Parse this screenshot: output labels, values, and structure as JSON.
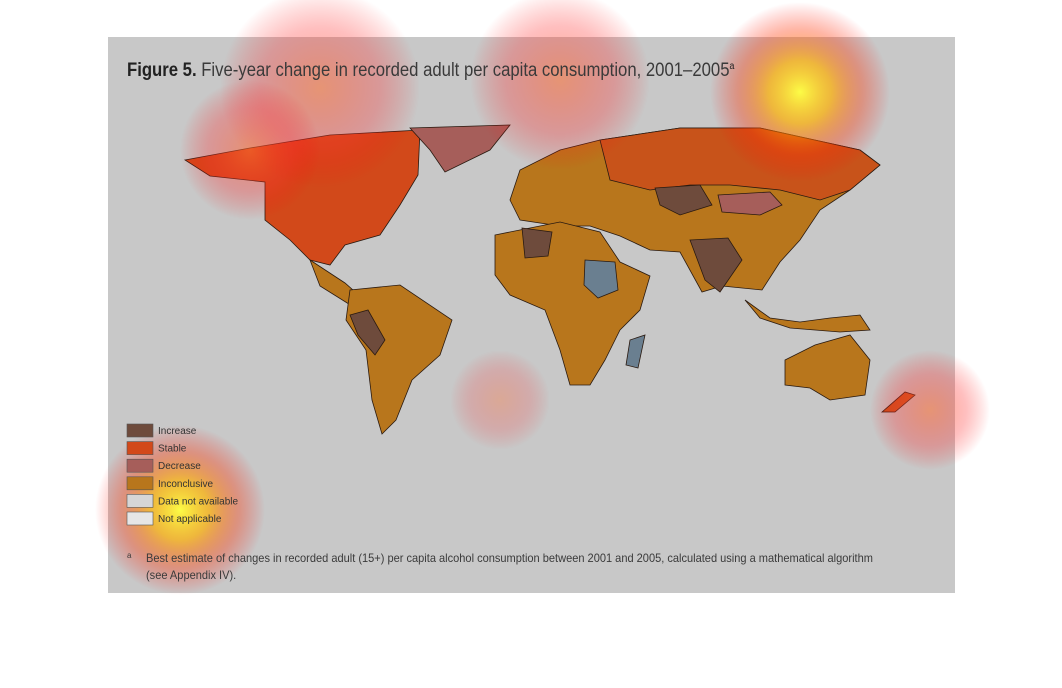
{
  "header": {
    "figure_label": "Figure 5.",
    "title": "Five-year change in recorded adult per capita consumption, 2001–2005",
    "superscript": "a"
  },
  "legend": {
    "items": [
      {
        "label": "Increase",
        "color": "#6e4b3c"
      },
      {
        "label": "Stable",
        "color": "#d2491a"
      },
      {
        "label": "Decrease",
        "color": "#a65e5a"
      },
      {
        "label": "Inconclusive",
        "color": "#b8761c"
      },
      {
        "label": "Data not available",
        "color": "#d6d6d6"
      },
      {
        "label": "Not applicable",
        "color": "#e6e6e6"
      }
    ]
  },
  "footnote": {
    "marker": "a",
    "text": "Best estimate of changes in recorded adult (15+) per capita alcohol consumption between 2001 and 2005, calculated using a mathematical algorithm (see Appendix IV)."
  }
}
